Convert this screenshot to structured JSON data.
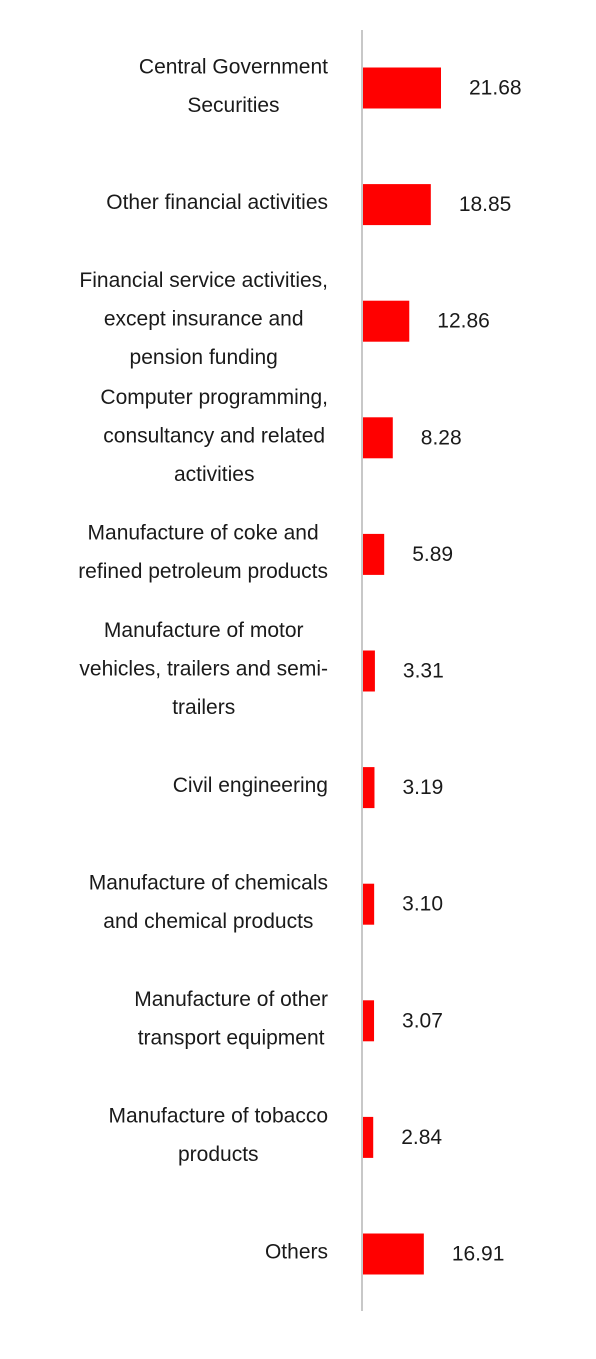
{
  "colors": {
    "bar": "#ff0000",
    "axis": "#c8c8c8",
    "text": "#1a1a1a"
  },
  "chart_data": {
    "type": "bar",
    "orientation": "horizontal",
    "categories": [
      [
        "Central Government",
        "Securities"
      ],
      [
        "Other financial activities"
      ],
      [
        "Financial service activities,",
        "except insurance and",
        "pension funding"
      ],
      [
        "Computer programming,",
        "consultancy and related",
        "activities"
      ],
      [
        "Manufacture of coke and",
        "refined petroleum products"
      ],
      [
        "Manufacture of motor",
        "vehicles, trailers and semi-",
        "trailers"
      ],
      [
        "Civil engineering"
      ],
      [
        "Manufacture of chemicals",
        "and chemical products"
      ],
      [
        "Manufacture of other",
        "transport equipment"
      ],
      [
        "Manufacture of tobacco",
        "products"
      ],
      [
        "Others"
      ]
    ],
    "values": [
      21.68,
      18.85,
      12.86,
      8.28,
      5.89,
      3.31,
      3.19,
      3.1,
      3.07,
      2.84,
      16.91
    ],
    "value_labels": [
      "21.68",
      "18.85",
      "12.86",
      "8.28",
      "5.89",
      "3.31",
      "3.19",
      "3.10",
      "3.07",
      "2.84",
      "16.91"
    ],
    "xlim": [
      0,
      21.68
    ],
    "grid": false,
    "legend": "none"
  }
}
